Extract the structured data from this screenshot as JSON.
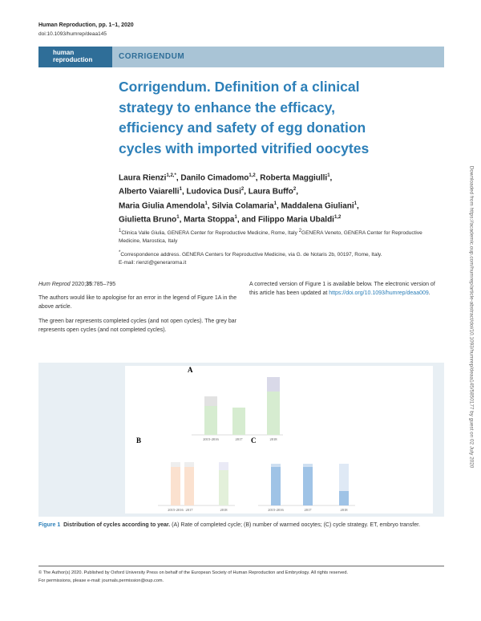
{
  "header": {
    "journal": "Human Reproduction, pp. 1–1, 2020",
    "doi": "doi:10.1093/humrep/deaa145"
  },
  "banner": {
    "logo": [
      "human",
      "reproduction"
    ],
    "section": "CORRIGENDUM"
  },
  "title": [
    "Corrigendum. Definition of a clinical",
    "strategy to enhance the efficacy,",
    "efficiency and safety of egg donation",
    "cycles with imported vitrified oocytes"
  ],
  "authors": [
    [
      {
        "name": "Laura Rienzi",
        "sup": "1,2,*"
      },
      {
        "name": "Danilo Cimadomo",
        "sup": "1,2"
      },
      {
        "name": "Roberta Maggiulli",
        "sup": "1"
      }
    ],
    [
      {
        "name": "Alberto Vaiarelli",
        "sup": "1"
      },
      {
        "name": "Ludovica Dusi",
        "sup": "2"
      },
      {
        "name": "Laura Buffo",
        "sup": "2"
      }
    ],
    [
      {
        "name": "Maria Giulia Amendola",
        "sup": "1"
      },
      {
        "name": "Silvia Colamaria",
        "sup": "1"
      },
      {
        "name": "Maddalena Giuliani",
        "sup": "1"
      }
    ],
    [
      {
        "name": "Giulietta Bruno",
        "sup": "1"
      },
      {
        "name": "Marta Stoppa",
        "sup": "1"
      },
      {
        "name": "and Filippo Maria Ubaldi",
        "sup": "1,2"
      }
    ]
  ],
  "affiliations": [
    {
      "sup": "1",
      "text": "Clinica Valle Giulia, GENERA Center for Reproductive Medicine, Rome, Italy "
    },
    {
      "sup": "2",
      "text": "GENERA Veneto, GENERA Center for Reproductive Medicine, Marostica, Italy"
    }
  ],
  "correspondence": {
    "sup": "*",
    "text": "Correspondence address. GENERA Centers for Reproductive Medicine, via G. de Notaris 2b, 00197, Rome, Italy.",
    "email": "E-mail: rienzi@generaroma.it"
  },
  "citation": {
    "journal": "Hum Reprod",
    "year": " 2020;",
    "volume": "35",
    "pages": ":785–795"
  },
  "left_paragraphs": [
    "The authors would like to apologise for an error in the legend of Figure 1A in the above article.",
    "The green bar represents completed cycles (and not open cycles). The grey bar represents open cycles (and not completed cycles)."
  ],
  "right_paragraph": {
    "text": "A corrected version of Figure 1 is available below. The electronic version of this article has been updated at ",
    "link": "https://doi.org/10.1093/humrep/deaa009",
    "end": "."
  },
  "figure": {
    "panels": [
      "A",
      "B",
      "C"
    ],
    "years": [
      "2015-2016",
      "2017",
      "2018"
    ],
    "caption": {
      "label": "Figure 1",
      "title": "Distribution of cycles according to year.",
      "text": " (A) Rate of completed cycle; (B) number of warmed oocytes; (C) cycle strategy. ET, embryo transfer."
    }
  },
  "footer": [
    "© The Author(s) 2020. Published by Oxford University Press on behalf of the European Society of Human Reproduction and Embryology. All rights reserved.",
    "For permissions, please e-mail: journals.permission@oup.com."
  ],
  "sidebar": "Downloaded from https://academic.oup.com/humrep/article-abstract/doi/10.1093/humrep/deaa145/5850177 by guest on 02 July 2020"
}
